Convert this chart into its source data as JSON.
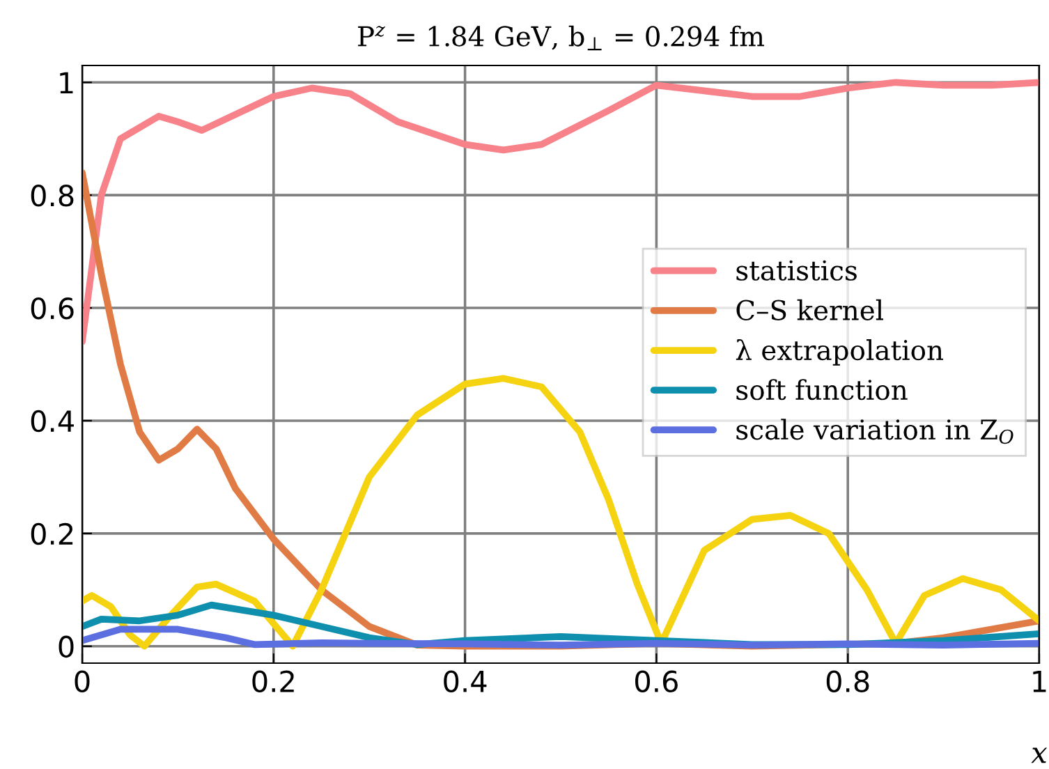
{
  "chart_data": {
    "type": "line",
    "title": "P$^{z}$ = 1.84 GeV, b$_{⊥}$ = 0.294 fm",
    "xlabel": "x",
    "xlim": [
      0,
      1
    ],
    "ylim": [
      -0.03,
      1.03
    ],
    "xticks": [
      0,
      0.2,
      0.4,
      0.6,
      0.8,
      1
    ],
    "yticks": [
      0,
      0.2,
      0.4,
      0.6,
      0.8,
      {
        "value": 1,
        "label": "1"
      }
    ],
    "grid": true,
    "legend": "right",
    "line_style": "solid",
    "marker": "none",
    "series": [
      {
        "name": "statistics",
        "color": "#f7828a",
        "x": [
          0,
          0.02,
          0.04,
          0.08,
          0.1,
          0.125,
          0.15,
          0.2,
          0.24,
          0.28,
          0.33,
          0.4,
          0.44,
          0.48,
          0.55,
          0.6,
          0.65,
          0.7,
          0.75,
          0.8,
          0.85,
          0.9,
          0.95,
          1.0
        ],
        "values": [
          0.54,
          0.8,
          0.9,
          0.94,
          0.93,
          0.915,
          0.935,
          0.975,
          0.99,
          0.98,
          0.93,
          0.89,
          0.88,
          0.89,
          0.95,
          0.995,
          0.985,
          0.975,
          0.975,
          0.99,
          1.0,
          0.995,
          0.995,
          1.0
        ]
      },
      {
        "name": "C–S kernel",
        "color": "#e07b45",
        "x": [
          0,
          0.02,
          0.04,
          0.06,
          0.08,
          0.1,
          0.12,
          0.14,
          0.16,
          0.2,
          0.25,
          0.3,
          0.35,
          0.4,
          0.5,
          0.6,
          0.7,
          0.85,
          0.9,
          1.0
        ],
        "values": [
          0.84,
          0.66,
          0.5,
          0.38,
          0.33,
          0.35,
          0.385,
          0.35,
          0.28,
          0.19,
          0.1,
          0.035,
          0.002,
          0,
          0,
          0.005,
          0,
          0.005,
          0.015,
          0.045
        ]
      },
      {
        "name": "λ extrapolation",
        "color": "#f5d311",
        "x": [
          0,
          0.01,
          0.03,
          0.05,
          0.065,
          0.09,
          0.12,
          0.14,
          0.18,
          0.205,
          0.22,
          0.25,
          0.3,
          0.35,
          0.4,
          0.44,
          0.48,
          0.52,
          0.55,
          0.58,
          0.605,
          0.65,
          0.7,
          0.74,
          0.78,
          0.82,
          0.85,
          0.88,
          0.92,
          0.96,
          1.0
        ],
        "values": [
          0.08,
          0.09,
          0.07,
          0.02,
          0,
          0.05,
          0.105,
          0.11,
          0.08,
          0.03,
          0,
          0.1,
          0.3,
          0.41,
          0.465,
          0.475,
          0.46,
          0.38,
          0.26,
          0.11,
          0.005,
          0.17,
          0.225,
          0.232,
          0.2,
          0.1,
          0.005,
          0.09,
          0.12,
          0.1,
          0.045
        ]
      },
      {
        "name": "soft function",
        "color": "#0f8fae",
        "x": [
          0,
          0.02,
          0.06,
          0.1,
          0.135,
          0.2,
          0.25,
          0.3,
          0.35,
          0.4,
          0.5,
          0.6,
          0.7,
          0.8,
          0.9,
          1.0
        ],
        "values": [
          0.035,
          0.048,
          0.045,
          0.055,
          0.073,
          0.055,
          0.035,
          0.015,
          0.003,
          0.01,
          0.017,
          0.01,
          0.003,
          0.003,
          0.01,
          0.022
        ]
      },
      {
        "name": "scale variation in Z$_{O}$",
        "color": "#5b6fe0",
        "x": [
          0,
          0.04,
          0.1,
          0.15,
          0.18,
          0.25,
          0.3,
          0.4,
          0.5,
          0.6,
          0.7,
          0.8,
          0.9,
          1.0
        ],
        "values": [
          0.01,
          0.03,
          0.03,
          0.015,
          0.003,
          0.006,
          0.005,
          0.004,
          0.002,
          0.005,
          0.002,
          0.004,
          0.002,
          0.005
        ]
      }
    ]
  }
}
